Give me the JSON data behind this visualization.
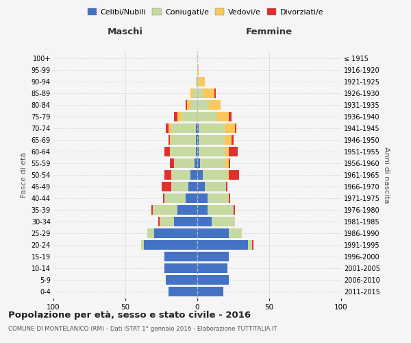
{
  "age_groups": [
    "0-4",
    "5-9",
    "10-14",
    "15-19",
    "20-24",
    "25-29",
    "30-34",
    "35-39",
    "40-44",
    "45-49",
    "50-54",
    "55-59",
    "60-64",
    "65-69",
    "70-74",
    "75-79",
    "80-84",
    "85-89",
    "90-94",
    "95-99",
    "100+"
  ],
  "birth_years": [
    "2011-2015",
    "2006-2010",
    "2001-2005",
    "1996-2000",
    "1991-1995",
    "1986-1990",
    "1981-1985",
    "1976-1980",
    "1971-1975",
    "1966-1970",
    "1961-1965",
    "1956-1960",
    "1951-1955",
    "1946-1950",
    "1941-1945",
    "1936-1940",
    "1931-1935",
    "1926-1930",
    "1921-1925",
    "1916-1920",
    "≤ 1915"
  ],
  "male": {
    "celibi": [
      20,
      22,
      23,
      23,
      37,
      30,
      16,
      14,
      8,
      6,
      5,
      2,
      1,
      1,
      1,
      0,
      0,
      0,
      0,
      0,
      0
    ],
    "coniugati": [
      0,
      0,
      0,
      0,
      2,
      5,
      10,
      17,
      15,
      12,
      13,
      14,
      18,
      17,
      17,
      11,
      5,
      3,
      1,
      0,
      0
    ],
    "vedovi": [
      0,
      0,
      0,
      0,
      0,
      0,
      0,
      0,
      0,
      0,
      0,
      0,
      0,
      1,
      2,
      3,
      2,
      2,
      0,
      0,
      0
    ],
    "divorziati": [
      0,
      0,
      0,
      0,
      0,
      0,
      1,
      1,
      1,
      7,
      5,
      3,
      4,
      1,
      2,
      2,
      1,
      0,
      0,
      0,
      0
    ]
  },
  "female": {
    "nubili": [
      18,
      22,
      21,
      22,
      35,
      22,
      10,
      7,
      7,
      5,
      4,
      2,
      1,
      1,
      1,
      0,
      0,
      0,
      0,
      0,
      0
    ],
    "coniugate": [
      0,
      0,
      0,
      0,
      3,
      9,
      16,
      18,
      15,
      15,
      17,
      17,
      18,
      18,
      18,
      14,
      8,
      4,
      1,
      0,
      0
    ],
    "vedove": [
      0,
      0,
      0,
      0,
      0,
      0,
      0,
      0,
      0,
      0,
      1,
      3,
      3,
      5,
      7,
      8,
      8,
      8,
      4,
      1,
      0
    ],
    "divorziate": [
      0,
      0,
      0,
      0,
      1,
      0,
      0,
      1,
      1,
      1,
      7,
      1,
      6,
      1,
      1,
      2,
      0,
      1,
      0,
      0,
      0
    ]
  },
  "color_celibi": "#4472c4",
  "color_coniugati": "#c6d9a0",
  "color_vedovi": "#fac85a",
  "color_divorziati": "#e03030",
  "title1": "Popolazione per età, sesso e stato civile - 2016",
  "title2": "COMUNE DI MONTELANICO (RM) - Dati ISTAT 1° gennaio 2016 - Elaborazione TUTTITALIA.IT",
  "xlabel_left": "Maschi",
  "xlabel_right": "Femmine",
  "ylabel_left": "Fasce di età",
  "ylabel_right": "Anni di nascita",
  "xlim": 100,
  "background_color": "#f5f5f5",
  "grid_color": "#cccccc"
}
